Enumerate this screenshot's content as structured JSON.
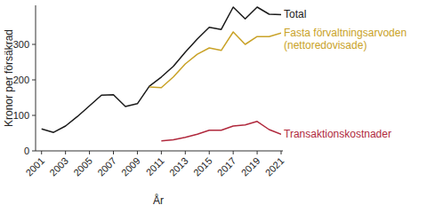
{
  "chart_data": {
    "type": "line",
    "x_label": "År",
    "y_label": "Kronor per försäkrad",
    "x": [
      2001,
      2002,
      2003,
      2004,
      2005,
      2006,
      2007,
      2008,
      2009,
      2010,
      2011,
      2012,
      2013,
      2014,
      2015,
      2016,
      2017,
      2018,
      2019,
      2020,
      2021
    ],
    "series": [
      {
        "name": "Total",
        "color": "#1a1a1a",
        "values": [
          62,
          52,
          70,
          97,
          127,
          157,
          158,
          125,
          133,
          182,
          208,
          238,
          278,
          315,
          348,
          342,
          405,
          372,
          405,
          385,
          384
        ]
      },
      {
        "name": "Fasta förvaltningsarvoden (nettoredovisade)",
        "color": "#c9a227",
        "values": [
          null,
          null,
          null,
          null,
          null,
          null,
          null,
          null,
          null,
          180,
          178,
          208,
          245,
          272,
          290,
          283,
          335,
          300,
          322,
          322,
          332
        ]
      },
      {
        "name": "Transaktionskostnader",
        "color": "#b0283c",
        "values": [
          null,
          null,
          null,
          null,
          null,
          null,
          null,
          null,
          null,
          null,
          28,
          31,
          38,
          47,
          58,
          58,
          70,
          73,
          83,
          60,
          47
        ]
      }
    ],
    "xlim": [
      2000.5,
      2021
    ],
    "xticks": [
      2001,
      2003,
      2005,
      2007,
      2009,
      2011,
      2013,
      2015,
      2017,
      2019,
      2021
    ],
    "ylim": [
      0,
      410
    ],
    "yticks": [
      0,
      100,
      200,
      300
    ],
    "grid": false
  }
}
